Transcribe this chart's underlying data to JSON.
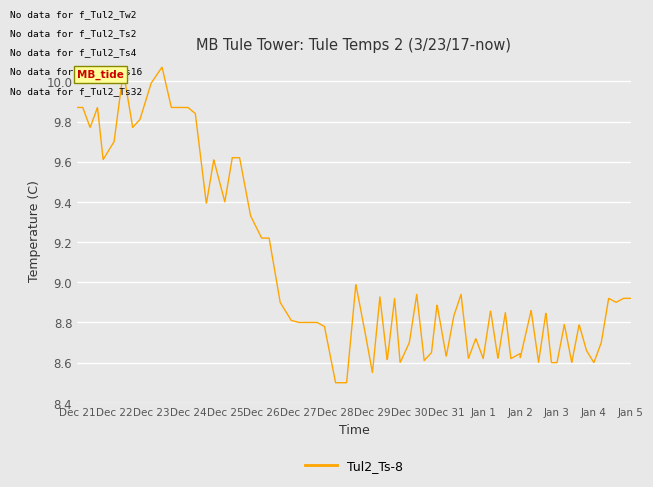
{
  "title": "MB Tule Tower: Tule Temps 2 (3/23/17-now)",
  "xlabel": "Time",
  "ylabel": "Temperature (C)",
  "legend_label": "Tul2_Ts-8",
  "line_color": "#FFA500",
  "background_color": "#E8E8E8",
  "plot_bg_color": "#E8E8E8",
  "ylim": [
    8.4,
    10.12
  ],
  "xlim": [
    0,
    15
  ],
  "no_data_labels": [
    "No data for f_Tul2_Tw2",
    "No data for f_Tul2_Ts2",
    "No data for f_Tul2_Ts4",
    "No data for f_Tul2_Ts16",
    "No data for f_Tul2_Ts32"
  ],
  "xtick_labels": [
    "Dec 21",
    "Dec 22",
    "Dec 23",
    "Dec 24",
    "Dec 25",
    "Dec 26",
    "Dec 27",
    "Dec 28",
    "Dec 29",
    "Dec 30",
    "Dec 31",
    "Jan 1",
    "Jan 2",
    "Jan 3",
    "Jan 4",
    "Jan 5"
  ],
  "ytick_labels": [
    "8.4",
    "8.6",
    "8.8",
    "9.0",
    "9.2",
    "9.4",
    "9.6",
    "9.8",
    "10.0"
  ],
  "ytick_values": [
    8.4,
    8.6,
    8.8,
    9.0,
    9.2,
    9.4,
    9.6,
    9.8,
    10.0
  ],
  "tooltip_text": "MB_tide",
  "tooltip_color": "#CC0000",
  "tooltip_bg": "#FFFF99",
  "tooltip_border": "#888800"
}
